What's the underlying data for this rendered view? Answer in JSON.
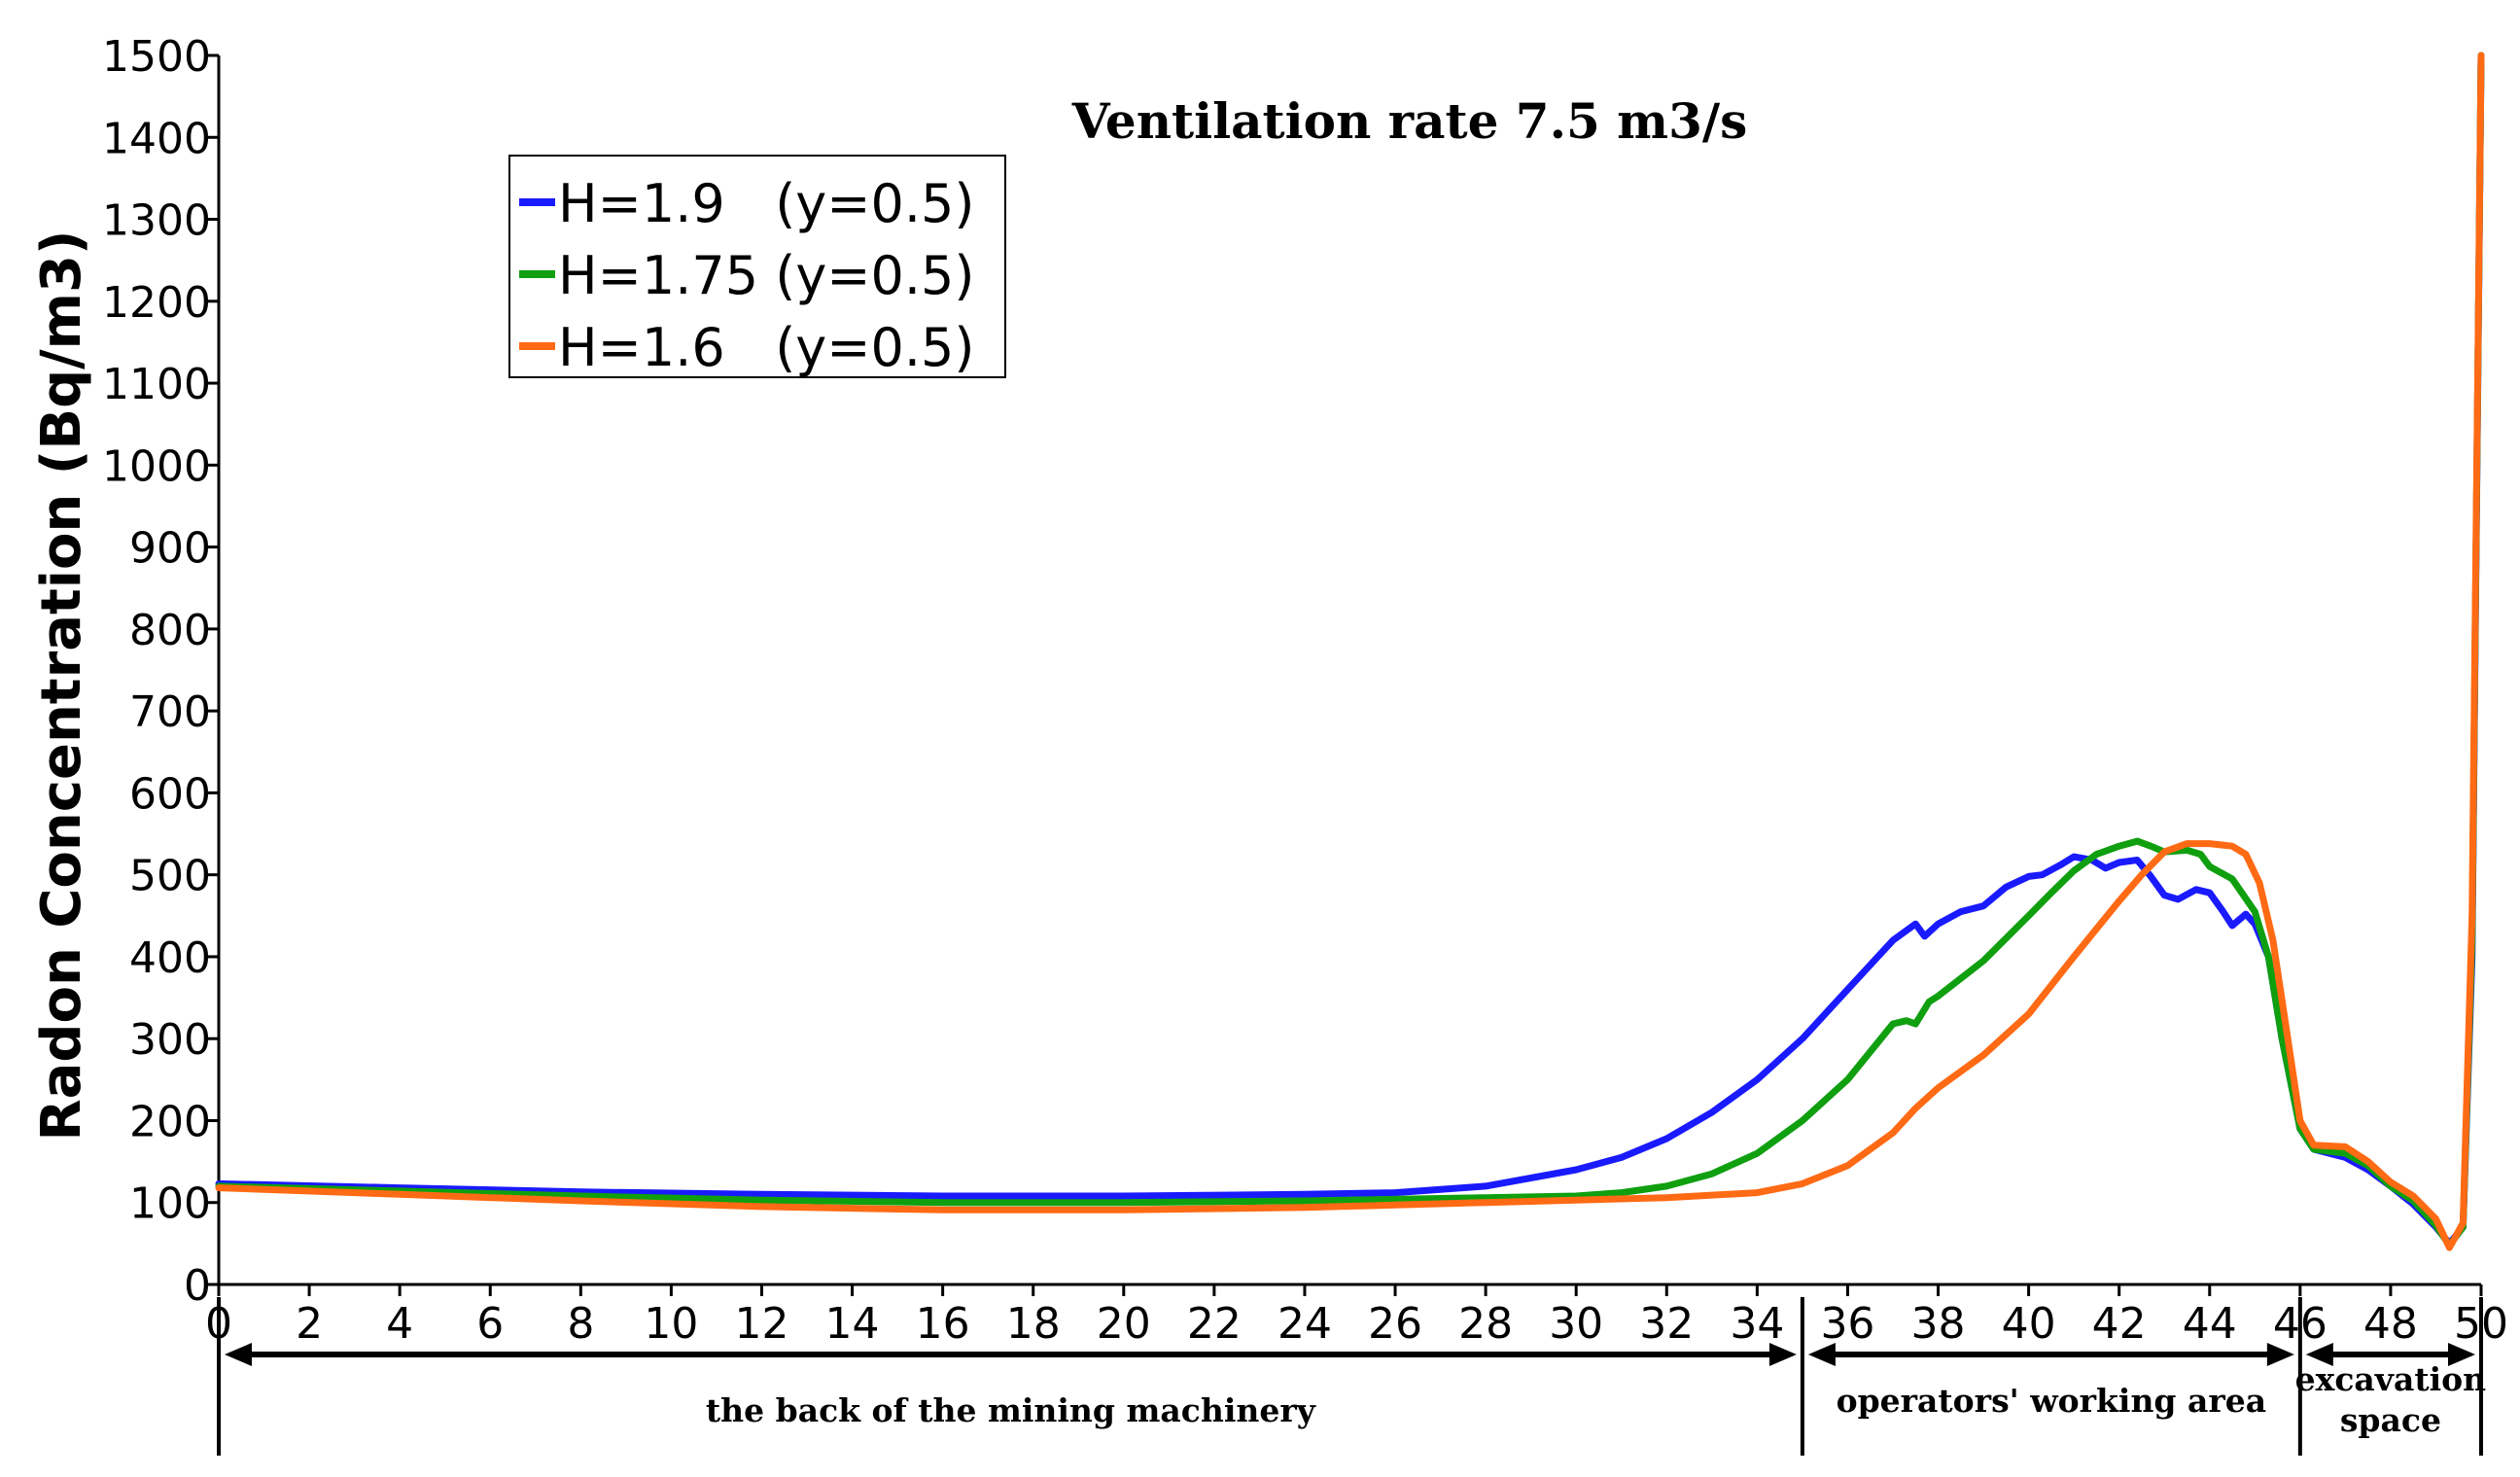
{
  "chart_data": {
    "type": "line",
    "title": "Ventilation rate 7.5 m3/s",
    "xlabel": "",
    "ylabel": "Radon Concentration (Bq/m3)",
    "xlim": [
      0,
      50
    ],
    "ylim": [
      0,
      1500
    ],
    "x_ticks": [
      0,
      2,
      4,
      6,
      8,
      10,
      12,
      14,
      16,
      18,
      20,
      22,
      24,
      26,
      28,
      30,
      32,
      34,
      36,
      38,
      40,
      42,
      44,
      46,
      48,
      50
    ],
    "y_ticks": [
      0,
      100,
      200,
      300,
      400,
      500,
      600,
      700,
      800,
      900,
      1000,
      1100,
      1200,
      1300,
      1400,
      1500
    ],
    "grid": false,
    "legend_position": "top-left",
    "series": [
      {
        "name": "H=1.9   (y=0.5)",
        "color": "#1a1aff",
        "points": [
          [
            0,
            123
          ],
          [
            4,
            118
          ],
          [
            8,
            113
          ],
          [
            12,
            110
          ],
          [
            16,
            108
          ],
          [
            20,
            108
          ],
          [
            24,
            110
          ],
          [
            26,
            112
          ],
          [
            28,
            120
          ],
          [
            30,
            140
          ],
          [
            31,
            155
          ],
          [
            32,
            178
          ],
          [
            33,
            210
          ],
          [
            34,
            250
          ],
          [
            35,
            300
          ],
          [
            36,
            360
          ],
          [
            37,
            420
          ],
          [
            37.5,
            440
          ],
          [
            37.7,
            425
          ],
          [
            38,
            440
          ],
          [
            38.5,
            455
          ],
          [
            39,
            462
          ],
          [
            39.5,
            485
          ],
          [
            40,
            498
          ],
          [
            40.3,
            500
          ],
          [
            40.7,
            512
          ],
          [
            41,
            522
          ],
          [
            41.4,
            518
          ],
          [
            41.7,
            508
          ],
          [
            42,
            515
          ],
          [
            42.4,
            518
          ],
          [
            42.7,
            498
          ],
          [
            43,
            475
          ],
          [
            43.3,
            470
          ],
          [
            43.7,
            482
          ],
          [
            44,
            478
          ],
          [
            44.3,
            455
          ],
          [
            44.5,
            438
          ],
          [
            44.8,
            452
          ],
          [
            45,
            440
          ],
          [
            45.3,
            400
          ],
          [
            45.6,
            300
          ],
          [
            46,
            190
          ],
          [
            46.3,
            165
          ],
          [
            47,
            155
          ],
          [
            47.5,
            140
          ],
          [
            48,
            120
          ],
          [
            48.5,
            98
          ],
          [
            49,
            70
          ],
          [
            49.3,
            50
          ],
          [
            49.6,
            70
          ],
          [
            49.8,
            400
          ],
          [
            50,
            1500
          ]
        ]
      },
      {
        "name": "H=1.75 (y=0.5)",
        "color": "#0f9f0f",
        "points": [
          [
            0,
            120
          ],
          [
            4,
            114
          ],
          [
            8,
            108
          ],
          [
            12,
            103
          ],
          [
            16,
            100
          ],
          [
            20,
            100
          ],
          [
            24,
            102
          ],
          [
            26,
            104
          ],
          [
            28,
            106
          ],
          [
            30,
            108
          ],
          [
            31,
            112
          ],
          [
            32,
            120
          ],
          [
            33,
            135
          ],
          [
            34,
            160
          ],
          [
            35,
            200
          ],
          [
            36,
            250
          ],
          [
            37,
            318
          ],
          [
            37.3,
            322
          ],
          [
            37.5,
            318
          ],
          [
            37.8,
            345
          ],
          [
            38,
            352
          ],
          [
            39,
            395
          ],
          [
            40,
            450
          ],
          [
            40.5,
            478
          ],
          [
            41,
            505
          ],
          [
            41.5,
            525
          ],
          [
            42,
            535
          ],
          [
            42.4,
            541
          ],
          [
            42.7,
            535
          ],
          [
            43,
            528
          ],
          [
            43.5,
            530
          ],
          [
            43.8,
            525
          ],
          [
            44,
            510
          ],
          [
            44.5,
            495
          ],
          [
            45,
            455
          ],
          [
            45.3,
            400
          ],
          [
            45.6,
            300
          ],
          [
            46,
            190
          ],
          [
            46.3,
            165
          ],
          [
            47,
            160
          ],
          [
            47.5,
            145
          ],
          [
            48,
            120
          ],
          [
            48.5,
            102
          ],
          [
            49,
            72
          ],
          [
            49.3,
            48
          ],
          [
            49.6,
            70
          ],
          [
            49.8,
            420
          ],
          [
            50,
            1500
          ]
        ]
      },
      {
        "name": "H=1.6   (y=0.5)",
        "color": "#ff6a14",
        "points": [
          [
            0,
            118
          ],
          [
            4,
            110
          ],
          [
            8,
            102
          ],
          [
            12,
            95
          ],
          [
            16,
            91
          ],
          [
            20,
            91
          ],
          [
            24,
            94
          ],
          [
            26,
            97
          ],
          [
            28,
            100
          ],
          [
            30,
            103
          ],
          [
            32,
            106
          ],
          [
            34,
            112
          ],
          [
            35,
            123
          ],
          [
            36,
            145
          ],
          [
            37,
            185
          ],
          [
            37.5,
            215
          ],
          [
            38,
            240
          ],
          [
            39,
            280
          ],
          [
            40,
            330
          ],
          [
            41,
            400
          ],
          [
            42,
            468
          ],
          [
            42.5,
            500
          ],
          [
            43,
            528
          ],
          [
            43.5,
            538
          ],
          [
            44,
            538
          ],
          [
            44.5,
            535
          ],
          [
            44.8,
            525
          ],
          [
            45.1,
            490
          ],
          [
            45.4,
            420
          ],
          [
            45.7,
            310
          ],
          [
            46,
            200
          ],
          [
            46.3,
            170
          ],
          [
            47,
            168
          ],
          [
            47.5,
            150
          ],
          [
            48,
            125
          ],
          [
            48.5,
            108
          ],
          [
            49,
            80
          ],
          [
            49.3,
            45
          ],
          [
            49.6,
            75
          ],
          [
            49.8,
            450
          ],
          [
            50,
            1500
          ]
        ]
      }
    ],
    "regions": [
      {
        "label": "the back of the mining machinery",
        "x_start": 0,
        "x_end": 35
      },
      {
        "label": "operators' working area",
        "x_start": 35,
        "x_end": 46
      },
      {
        "label": "excavation space",
        "x_start": 46,
        "x_end": 50
      }
    ]
  }
}
